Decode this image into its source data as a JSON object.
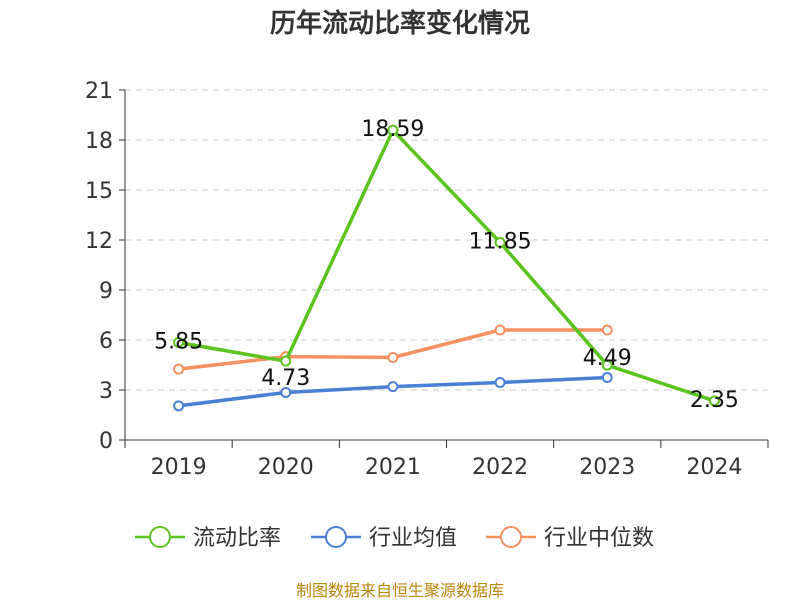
{
  "chart_data": {
    "type": "line",
    "title": "历年流动比率变化情况",
    "categories": [
      "2019",
      "2020",
      "2021",
      "2022",
      "2023",
      "2024"
    ],
    "ylim": [
      0,
      21
    ],
    "yticks": [
      "0",
      "3",
      "6",
      "9",
      "12",
      "15",
      "18",
      "21"
    ],
    "grid": true,
    "legend_position": "bottom",
    "series": [
      {
        "name": "流动比率",
        "color": "#5bc31d",
        "values": [
          5.85,
          4.73,
          18.59,
          11.85,
          4.49,
          2.35
        ],
        "labels": [
          "5.85",
          "4.73",
          "18.59",
          "11.85",
          "4.49",
          "2.35"
        ]
      },
      {
        "name": "行业均值",
        "color": "#4a7fd6",
        "values": [
          2.05,
          2.85,
          3.2,
          3.45,
          3.75,
          null
        ]
      },
      {
        "name": "行业中位数",
        "color": "#f59061",
        "values": [
          4.25,
          5.0,
          4.95,
          6.6,
          6.6,
          null
        ]
      }
    ]
  },
  "source": "制图数据来自恒生聚源数据库"
}
